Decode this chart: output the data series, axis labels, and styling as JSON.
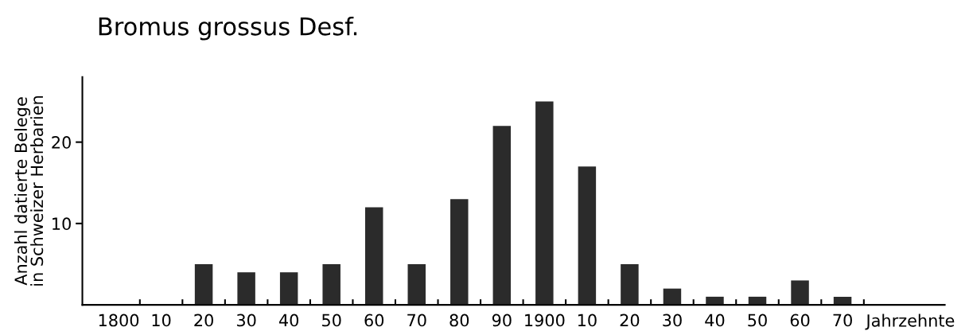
{
  "chart_data": {
    "type": "bar",
    "title": "Bromus grossus Desf.",
    "ylabel": "Anzahl datierte Belege\nin Schweizer Herbarien",
    "xlabel": "Jahrzehnte",
    "categories": [
      "1800",
      "10",
      "20",
      "30",
      "40",
      "50",
      "60",
      "70",
      "80",
      "90",
      "1900",
      "10",
      "20",
      "30",
      "40",
      "50",
      "60",
      "70"
    ],
    "values": [
      0,
      0,
      5,
      4,
      4,
      5,
      12,
      5,
      13,
      22,
      25,
      17,
      5,
      2,
      1,
      1,
      3,
      1
    ],
    "color": "#2b2b2b",
    "ylim": [
      0,
      28
    ],
    "yticks": [
      10,
      20
    ],
    "grid": false,
    "legend": false
  }
}
